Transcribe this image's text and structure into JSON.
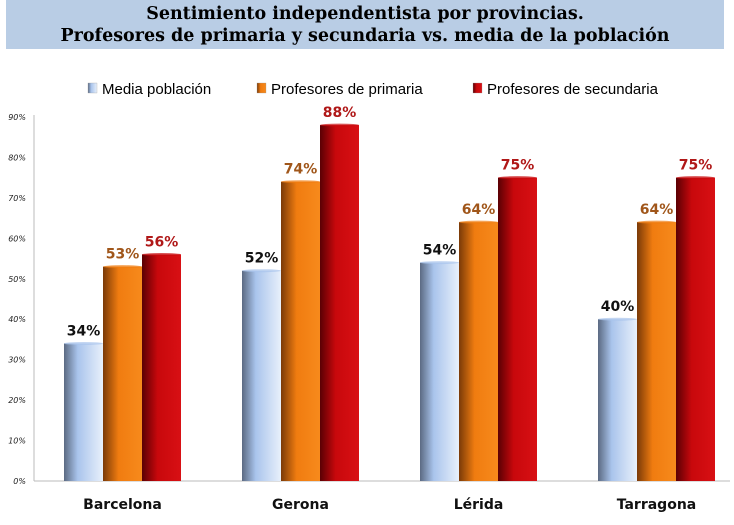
{
  "chart_data": {
    "type": "bar",
    "title": "Sentimiento independentista por provincias.",
    "subtitle": "Profesores de primaria y secundaria vs. media de la población",
    "categories": [
      "Barcelona",
      "Gerona",
      "Lérida",
      "Tarragona"
    ],
    "series": [
      {
        "name": "Media población",
        "values": [
          34,
          52,
          54,
          40
        ],
        "color": "#a9c4ec",
        "label_color": "#111111"
      },
      {
        "name": "Profesores de primaria",
        "values": [
          53,
          74,
          64,
          64
        ],
        "color": "#f07c10",
        "label_color": "#a0561a"
      },
      {
        "name": "Profesores de secundaria",
        "values": [
          56,
          88,
          75,
          75
        ],
        "color": "#c8080c",
        "label_color": "#b01818"
      }
    ],
    "yticks": [
      "0%",
      "10%",
      "20%",
      "30%",
      "40%",
      "50%",
      "60%",
      "70%",
      "80%",
      "90%"
    ],
    "ylim": [
      0,
      90
    ],
    "unit": "%",
    "grid": false,
    "legend": "top"
  }
}
